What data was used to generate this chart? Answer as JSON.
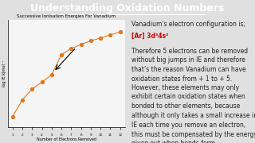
{
  "title": "Understanding Oxidation Numbers",
  "title_bg": "#1a237e",
  "title_color": "#ffffff",
  "slide_bg": "#e0e0e0",
  "chart_title": "Successive Ionisation Energies For Vanadium",
  "xlabel": "Number of Electrons Removed",
  "ylabel": "log IE kJmol⁻¹",
  "x_values": [
    1,
    2,
    3,
    4,
    5,
    6,
    7,
    8,
    9,
    10,
    11,
    12
  ],
  "y_values": [
    0.68,
    0.96,
    1.14,
    1.26,
    1.38,
    1.72,
    1.82,
    1.89,
    1.95,
    2.0,
    2.05,
    2.1
  ],
  "line_color": "#e07820",
  "marker_color": "#e07820",
  "text1_line1": "Vanadium's electron configuration is;",
  "text1_line2": "[Ar] 3d³4s²",
  "text1_line2_color": "#cc0000",
  "text2": "Therefore 5 electrons can be removed\nwithout big jumps in IE and therefore\nthat’s the reason Vanadium can have\noxidation states from + 1 to + 5.",
  "text3": "However, these elements may only\nexhibit certain oxidation states when\nbonded to other elements, because\nalthough it only takes a small increase in\nIE each time you remove an electron,\nthis must be compensated by the energy\ngiven out when bonds form.",
  "font_size_title": 9,
  "font_size_body": 5.5,
  "font_size_chart_title": 4,
  "font_size_axis": 3.5
}
